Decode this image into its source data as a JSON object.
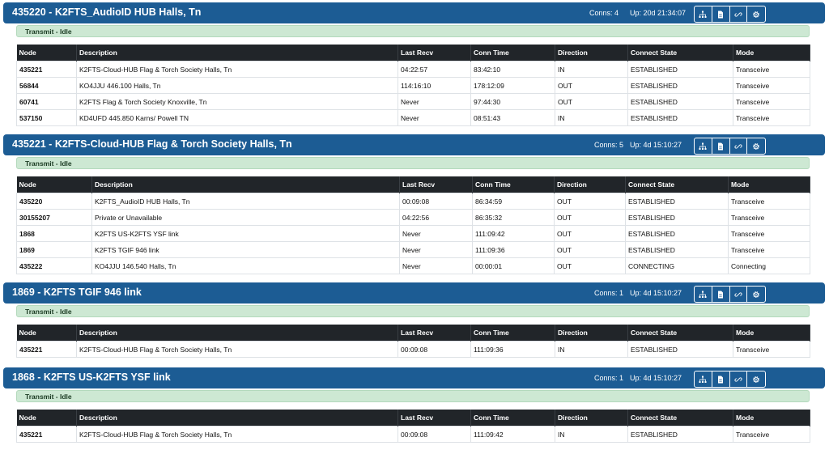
{
  "panels": [
    {
      "title": "435220 - K2FTS_AudioID HUB Halls, Tn",
      "conns": "Conns: 4",
      "uptime": "Up: 20d 21:34:07",
      "status": "Transmit - Idle",
      "headers": [
        "Node",
        "Description",
        "Last Recv",
        "Conn Time",
        "Direction",
        "Connect State",
        "Mode"
      ],
      "rows": [
        [
          "435221",
          "K2FTS-Cloud-HUB Flag & Torch Society Halls, Tn",
          "04:22:57",
          "83:42:10",
          "IN",
          "ESTABLISHED",
          "Transceive"
        ],
        [
          "56844",
          "KO4JJU 446.100 Halls, Tn",
          "114:16:10",
          "178:12:09",
          "OUT",
          "ESTABLISHED",
          "Transceive"
        ],
        [
          "60741",
          "K2FTS Flag & Torch Society Knoxville, Tn",
          "Never",
          "97:44:30",
          "OUT",
          "ESTABLISHED",
          "Transceive"
        ],
        [
          "537150",
          "KD4UFD 445.850 Karns/ Powell TN",
          "Never",
          "08:51:43",
          "IN",
          "ESTABLISHED",
          "Transceive"
        ]
      ]
    },
    {
      "title": "435221 - K2FTS-Cloud-HUB Flag & Torch Society Halls, Tn",
      "conns": "Conns: 5",
      "uptime": "Up: 4d 15:10:27",
      "status": "Transmit - Idle",
      "headers": [
        "Node",
        "Description",
        "Last Recv",
        "Conn Time",
        "Direction",
        "Connect State",
        "Mode"
      ],
      "rows": [
        [
          "435220",
          "K2FTS_AudioID HUB Halls, Tn",
          "00:09:08",
          "86:34:59",
          "OUT",
          "ESTABLISHED",
          "Transceive"
        ],
        [
          "30155207",
          "Private or Unavailable",
          "04:22:56",
          "86:35:32",
          "OUT",
          "ESTABLISHED",
          "Transceive"
        ],
        [
          "1868",
          "K2FTS US-K2FTS YSF link",
          "Never",
          "111:09:42",
          "OUT",
          "ESTABLISHED",
          "Transceive"
        ],
        [
          "1869",
          "K2FTS TGIF 946 link",
          "Never",
          "111:09:36",
          "OUT",
          "ESTABLISHED",
          "Transceive"
        ],
        [
          "435222",
          "KO4JJU 146.540 Halls, Tn",
          "Never",
          "00:00:01",
          "OUT",
          "CONNECTING",
          "Connecting"
        ]
      ]
    },
    {
      "title": "1869 - K2FTS TGIF 946 link",
      "conns": "Conns: 1",
      "uptime": "Up: 4d 15:10:27",
      "status": "Transmit - Idle",
      "headers": [
        "Node",
        "Description",
        "Last Recv",
        "Conn Time",
        "Direction",
        "Connect State",
        "Mode"
      ],
      "rows": [
        [
          "435221",
          "K2FTS-Cloud-HUB Flag & Torch Society Halls, Tn",
          "00:09:08",
          "111:09:36",
          "IN",
          "ESTABLISHED",
          "Transceive"
        ]
      ]
    },
    {
      "title": "1868 - K2FTS US-K2FTS YSF link",
      "conns": "Conns: 1",
      "uptime": "Up: 4d 15:10:27",
      "status": "Transmit - Idle",
      "headers": [
        "Node",
        "Description",
        "Last Recv",
        "Conn Time",
        "Direction",
        "Connect State",
        "Mode"
      ],
      "rows": [
        [
          "435221",
          "K2FTS-Cloud-HUB Flag & Torch Society Halls, Tn",
          "00:09:08",
          "111:09:42",
          "IN",
          "ESTABLISHED",
          "Transceive"
        ]
      ]
    }
  ],
  "header_buttons": [
    "network-icon",
    "document-icon",
    "link-icon",
    "settings-icon"
  ],
  "colors": {
    "header_bg": "#1c5c94",
    "status_bg": "#cde8d3",
    "table_head_bg": "#212529"
  }
}
